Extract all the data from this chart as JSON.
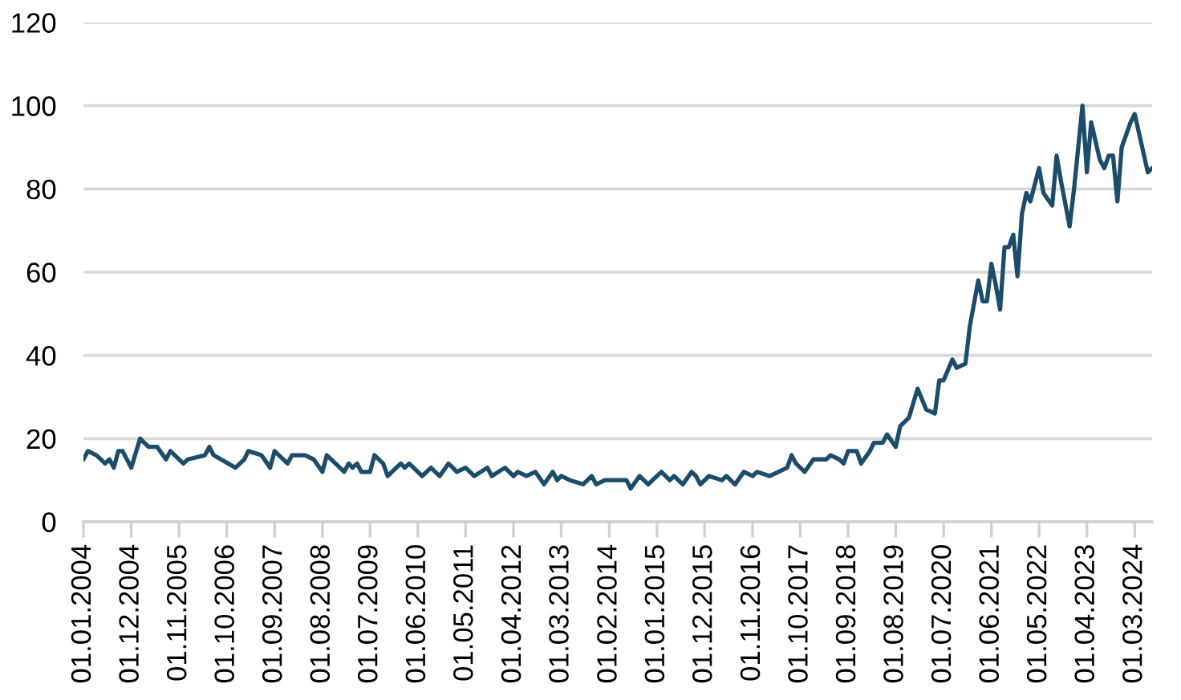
{
  "chart_data": {
    "type": "line",
    "x": [
      "2004-01",
      "2004-02",
      "2004-04",
      "2004-06",
      "2004-07",
      "2004-08",
      "2004-09",
      "2004-10",
      "2004-12",
      "2005-02",
      "2005-04",
      "2005-06",
      "2005-08",
      "2005-09",
      "2005-12",
      "2006-01",
      "2006-05",
      "2006-06",
      "2006-07",
      "2006-12",
      "2007-02",
      "2007-03",
      "2007-06",
      "2007-08",
      "2007-09",
      "2007-12",
      "2008-01",
      "2008-04",
      "2008-06",
      "2008-08",
      "2008-09",
      "2008-11",
      "2009-01",
      "2009-02",
      "2009-03",
      "2009-04",
      "2009-05",
      "2009-07",
      "2009-08",
      "2009-10",
      "2009-11",
      "2010-01",
      "2010-02",
      "2010-03",
      "2010-04",
      "2010-07",
      "2010-09",
      "2010-10",
      "2010-11",
      "2011-01",
      "2011-02",
      "2011-03",
      "2011-05",
      "2011-07",
      "2011-10",
      "2011-11",
      "2012-02",
      "2012-04",
      "2012-05",
      "2012-07",
      "2012-09",
      "2012-11",
      "2013-01",
      "2013-02",
      "2013-03",
      "2013-05",
      "2013-08",
      "2013-10",
      "2013-11",
      "2014-01",
      "2014-06",
      "2014-07",
      "2014-09",
      "2014-11",
      "2014-12",
      "2015-02",
      "2015-04",
      "2015-05",
      "2015-07",
      "2015-09",
      "2015-10",
      "2015-11",
      "2016-01",
      "2016-04",
      "2016-05",
      "2016-07",
      "2016-09",
      "2016-11",
      "2016-12",
      "2017-03",
      "2017-05",
      "2017-07",
      "2017-08",
      "2017-09",
      "2017-11",
      "2018-01",
      "2018-04",
      "2018-05",
      "2018-07",
      "2018-08",
      "2018-09",
      "2018-11",
      "2018-12",
      "2019-02",
      "2019-03",
      "2019-05",
      "2019-06",
      "2019-08",
      "2019-09",
      "2019-11",
      "2020-01",
      "2020-03",
      "2020-05",
      "2020-06",
      "2020-07",
      "2020-09",
      "2020-10",
      "2020-12",
      "2021-01",
      "2021-03",
      "2021-04",
      "2021-05",
      "2021-06",
      "2021-07",
      "2021-08",
      "2021-09",
      "2021-10",
      "2021-11",
      "2021-12",
      "2022-01",
      "2022-02",
      "2022-03",
      "2022-05",
      "2022-06",
      "2022-08",
      "2022-09",
      "2022-10",
      "2022-12",
      "2023-01",
      "2023-03",
      "2023-04",
      "2023-05",
      "2023-07",
      "2023-08",
      "2023-09",
      "2023-10",
      "2023-11",
      "2023-12",
      "2024-02",
      "2024-03",
      "2024-06",
      "2024-07"
    ],
    "values": [
      15,
      17,
      16,
      14,
      15,
      13,
      17,
      17,
      13,
      20,
      18,
      18,
      15,
      17,
      14,
      15,
      16,
      18,
      16,
      13,
      15,
      17,
      16,
      13,
      17,
      14,
      16,
      16,
      15,
      12,
      16,
      14,
      12,
      14,
      13,
      14,
      12,
      12,
      16,
      14,
      11,
      13,
      14,
      13,
      14,
      11,
      13,
      12,
      11,
      14,
      13,
      12,
      13,
      11,
      13,
      11,
      13,
      11,
      12,
      11,
      12,
      9,
      12,
      10,
      11,
      10,
      9,
      11,
      9,
      10,
      10,
      8,
      11,
      9,
      10,
      12,
      10,
      11,
      9,
      12,
      11,
      9,
      11,
      10,
      11,
      9,
      12,
      11,
      12,
      11,
      12,
      13,
      16,
      14,
      12,
      15,
      15,
      16,
      15,
      14,
      17,
      17,
      14,
      17,
      19,
      19,
      21,
      18,
      23,
      25,
      32,
      27,
      26,
      34,
      34,
      39,
      37,
      38,
      47,
      58,
      53,
      53,
      62,
      57,
      51,
      66,
      66,
      69,
      59,
      74,
      79,
      77,
      85,
      79,
      76,
      88,
      82,
      71,
      80,
      100,
      84,
      96,
      87,
      85,
      88,
      88,
      77,
      90,
      96,
      98,
      84,
      85
    ],
    "color": "#1b4d6b",
    "line_style": "solid",
    "xlim": [
      "2004-01",
      "2024-07"
    ],
    "xticks": [
      {
        "value": "2004-01",
        "label": "01.01.2004"
      },
      {
        "value": "2004-12",
        "label": "01.12.2004"
      },
      {
        "value": "2005-11",
        "label": "01.11.2005"
      },
      {
        "value": "2006-10",
        "label": "01.10.2006"
      },
      {
        "value": "2007-09",
        "label": "01.09.2007"
      },
      {
        "value": "2008-08",
        "label": "01.08.2008"
      },
      {
        "value": "2009-07",
        "label": "01.07.2009"
      },
      {
        "value": "2010-06",
        "label": "01.06.2010"
      },
      {
        "value": "2011-05",
        "label": "01.05.2011"
      },
      {
        "value": "2012-04",
        "label": "01.04.2012"
      },
      {
        "value": "2013-03",
        "label": "01.03.2013"
      },
      {
        "value": "2014-02",
        "label": "01.02.2014"
      },
      {
        "value": "2015-01",
        "label": "01.01.2015"
      },
      {
        "value": "2015-12",
        "label": "01.12.2015"
      },
      {
        "value": "2016-11",
        "label": "01.11.2016"
      },
      {
        "value": "2017-10",
        "label": "01.10.2017"
      },
      {
        "value": "2018-09",
        "label": "01.09.2018"
      },
      {
        "value": "2019-08",
        "label": "01.08.2019"
      },
      {
        "value": "2020-07",
        "label": "01.07.2020"
      },
      {
        "value": "2021-06",
        "label": "01.06.2021"
      },
      {
        "value": "2022-05",
        "label": "01.05.2022"
      },
      {
        "value": "2023-04",
        "label": "01.04.2023"
      },
      {
        "value": "2024-03",
        "label": "01.03.2024"
      }
    ],
    "ylim": [
      0,
      120
    ],
    "yticks": [
      0,
      20,
      40,
      60,
      80,
      100,
      120
    ],
    "grid": "y"
  }
}
